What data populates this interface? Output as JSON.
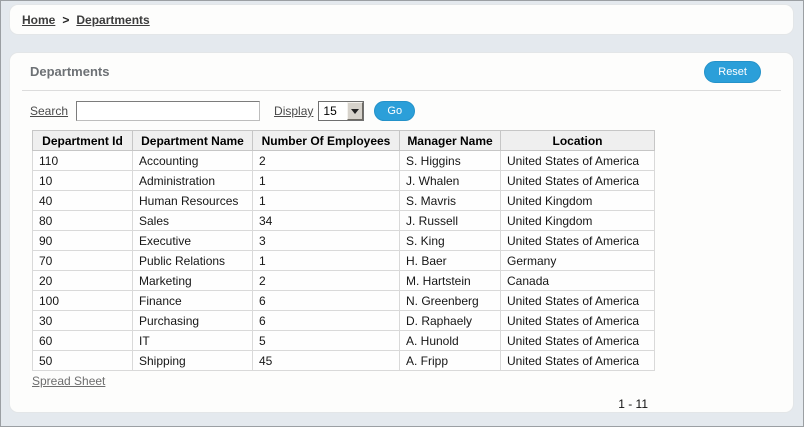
{
  "breadcrumb": {
    "items": [
      {
        "label": "Home"
      },
      {
        "label": "Departments"
      }
    ],
    "separator": ">"
  },
  "panel": {
    "title": "Departments",
    "reset_label": "Reset"
  },
  "toolbar": {
    "search_label": "Search",
    "search_value": "",
    "display_label": "Display",
    "display_value": "15",
    "go_label": "Go"
  },
  "table": {
    "columns": [
      "Department Id",
      "Department Name",
      "Number Of Employees",
      "Manager Name",
      "Location"
    ],
    "rows": [
      [
        "110",
        "Accounting",
        "2",
        "S. Higgins",
        "United States of America"
      ],
      [
        "10",
        "Administration",
        "1",
        "J. Whalen",
        "United States of America"
      ],
      [
        "40",
        "Human Resources",
        "1",
        "S. Mavris",
        "United Kingdom"
      ],
      [
        "80",
        "Sales",
        "34",
        "J. Russell",
        "United Kingdom"
      ],
      [
        "90",
        "Executive",
        "3",
        "S. King",
        "United States of America"
      ],
      [
        "70",
        "Public Relations",
        "1",
        "H. Baer",
        "Germany"
      ],
      [
        "20",
        "Marketing",
        "2",
        "M. Hartstein",
        "Canada"
      ],
      [
        "100",
        "Finance",
        "6",
        "N. Greenberg",
        "United States of America"
      ],
      [
        "30",
        "Purchasing",
        "6",
        "D. Raphaely",
        "United States of America"
      ],
      [
        "60",
        "IT",
        "5",
        "A. Hunold",
        "United States of America"
      ],
      [
        "50",
        "Shipping",
        "45",
        "A. Fripp",
        "United States of America"
      ]
    ]
  },
  "footer": {
    "spreadsheet_label": "Spread Sheet",
    "pagination": "1 - 11"
  },
  "colors": {
    "accent_blue": "#2b9fd9",
    "page_bg": "#e4e9ee",
    "panel_bg": "#fdfdfc",
    "table_header_bg": "#efefef"
  }
}
